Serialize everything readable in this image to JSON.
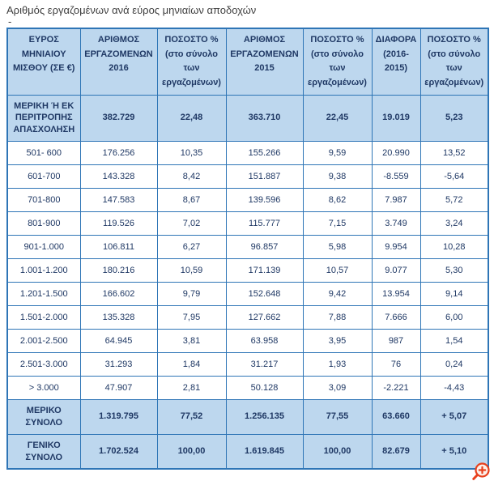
{
  "page": {
    "title": "Αριθμός εργαζομένων ανά εύρος μηνιαίων αποδοχών",
    "dash": "-"
  },
  "colors": {
    "table_border": "#2E75B6",
    "header_fill": "#BDD7EE",
    "text": "#1F3864",
    "zoom_icon": "#E8401C"
  },
  "icons": {
    "zoom": "zoom-in-magnifier"
  },
  "chart_data": {
    "type": "table",
    "title": "Αριθμός εργαζομένων ανά εύρος μηνιαίων αποδοχών",
    "columns": [
      {
        "lines": [
          "ΕΥΡΟΣ",
          "ΜΗΝΙΑΙΟΥ",
          "ΜΙΣΘΟΥ (ΣΕ €)"
        ]
      },
      {
        "lines": [
          "ΑΡΙΘΜΟΣ",
          "ΕΡΓΑΖΟΜΕΝΩΝ",
          "2016"
        ]
      },
      {
        "lines": [
          "ΠΟΣΟΣΤΟ %",
          "(στο σύνολο",
          "των",
          "εργαζομένων)"
        ]
      },
      {
        "lines": [
          "ΑΡΙΘΜΟΣ",
          "ΕΡΓΑΖΟΜΕΝΩΝ",
          "2015"
        ]
      },
      {
        "lines": [
          "ΠΟΣΟΣΤΟ %",
          "(στο σύνολο",
          "των",
          "εργαζομένων)"
        ]
      },
      {
        "lines": [
          "ΔΙΑΦΟΡΑ",
          "(2016-",
          "2015)"
        ]
      },
      {
        "lines": [
          "ΠΟΣΟΣΤΟ %",
          "(στο σύνολο",
          "των",
          "εργαζομένων)"
        ]
      }
    ],
    "rows": [
      {
        "label": "ΜΕΡΙΚΗ Ή ΕΚ ΠΕΡΙΤΡΟΠΗΣ ΑΠΑΣΧΟΛΗΣΗ",
        "highlight": true,
        "values": [
          "382.729",
          "22,48",
          "363.710",
          "22,45",
          "19.019",
          "5,23"
        ]
      },
      {
        "label": "501- 600",
        "highlight": false,
        "values": [
          "176.256",
          "10,35",
          "155.266",
          "9,59",
          "20.990",
          "13,52"
        ]
      },
      {
        "label": "601-700",
        "highlight": false,
        "values": [
          "143.328",
          "8,42",
          "151.887",
          "9,38",
          "-8.559",
          "-5,64"
        ]
      },
      {
        "label": "701-800",
        "highlight": false,
        "values": [
          "147.583",
          "8,67",
          "139.596",
          "8,62",
          "7.987",
          "5,72"
        ]
      },
      {
        "label": "801-900",
        "highlight": false,
        "values": [
          "119.526",
          "7,02",
          "115.777",
          "7,15",
          "3.749",
          "3,24"
        ]
      },
      {
        "label": "901-1.000",
        "highlight": false,
        "values": [
          "106.811",
          "6,27",
          "96.857",
          "5,98",
          "9.954",
          "10,28"
        ]
      },
      {
        "label": "1.001-1.200",
        "highlight": false,
        "values": [
          "180.216",
          "10,59",
          "171.139",
          "10,57",
          "9.077",
          "5,30"
        ]
      },
      {
        "label": "1.201-1.500",
        "highlight": false,
        "values": [
          "166.602",
          "9,79",
          "152.648",
          "9,42",
          "13.954",
          "9,14"
        ]
      },
      {
        "label": "1.501-2.000",
        "highlight": false,
        "values": [
          "135.328",
          "7,95",
          "127.662",
          "7,88",
          "7.666",
          "6,00"
        ]
      },
      {
        "label": "2.001-2.500",
        "highlight": false,
        "values": [
          "64.945",
          "3,81",
          "63.958",
          "3,95",
          "987",
          "1,54"
        ]
      },
      {
        "label": "2.501-3.000",
        "highlight": false,
        "values": [
          "31.293",
          "1,84",
          "31.217",
          "1,93",
          "76",
          "0,24"
        ]
      },
      {
        "label": "> 3.000",
        "highlight": false,
        "values": [
          "47.907",
          "2,81",
          "50.128",
          "3,09",
          "-2.221",
          "-4,43"
        ]
      },
      {
        "label": "ΜΕΡΙΚΟ ΣΥΝΟΛΟ",
        "highlight": true,
        "values": [
          "1.319.795",
          "77,52",
          "1.256.135",
          "77,55",
          "63.660",
          "+ 5,07"
        ]
      },
      {
        "label": "ΓΕΝΙΚΟ ΣΥΝΟΛΟ",
        "highlight": true,
        "values": [
          "1.702.524",
          "100,00",
          "1.619.845",
          "100,00",
          "82.679",
          "+ 5,10"
        ]
      }
    ]
  }
}
